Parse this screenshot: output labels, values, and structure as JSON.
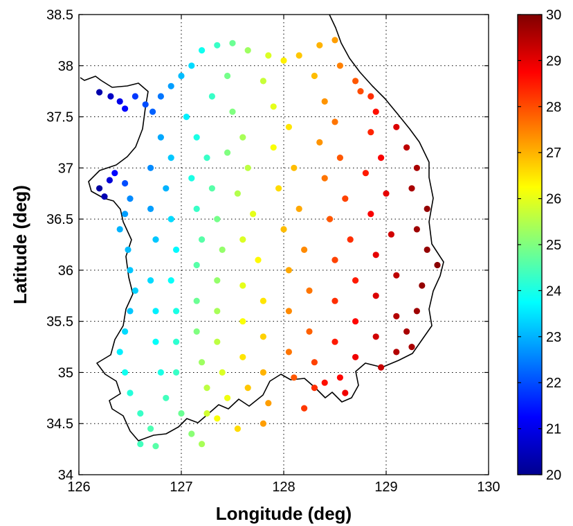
{
  "chart_data": {
    "type": "scatter",
    "title": "",
    "xlabel": "Longitude (deg)",
    "ylabel": "Latitude (deg)",
    "xlim": [
      126,
      130
    ],
    "ylim": [
      34,
      38.5
    ],
    "x_ticks": [
      "126",
      "127",
      "128",
      "129",
      "130"
    ],
    "y_ticks": [
      "34",
      "34.5",
      "35",
      "35.5",
      "36",
      "36.5",
      "37",
      "37.5",
      "38",
      "38.5"
    ],
    "grid": true,
    "colormap": "jet",
    "colorbar": {
      "range": [
        20,
        30
      ],
      "ticks": [
        "20",
        "21",
        "22",
        "23",
        "24",
        "25",
        "26",
        "27",
        "28",
        "29",
        "30"
      ],
      "placement": "right"
    },
    "coastline_color": "#000000",
    "points": [
      [
        126.2,
        37.74,
        20.3
      ],
      [
        126.31,
        37.7,
        20.6
      ],
      [
        126.4,
        37.65,
        21.0
      ],
      [
        126.45,
        37.58,
        21.3
      ],
      [
        126.55,
        37.7,
        21.8
      ],
      [
        126.65,
        37.62,
        22.0
      ],
      [
        126.72,
        37.55,
        22.2
      ],
      [
        126.8,
        37.7,
        22.4
      ],
      [
        126.9,
        37.8,
        22.8
      ],
      [
        127.0,
        37.9,
        23.1
      ],
      [
        127.1,
        38.0,
        23.4
      ],
      [
        127.2,
        38.15,
        23.9
      ],
      [
        127.35,
        38.2,
        24.3
      ],
      [
        127.5,
        38.22,
        24.8
      ],
      [
        127.65,
        38.15,
        25.3
      ],
      [
        127.85,
        38.1,
        25.9
      ],
      [
        128.0,
        38.05,
        26.4
      ],
      [
        128.15,
        38.1,
        26.8
      ],
      [
        128.35,
        38.2,
        27.0
      ],
      [
        128.5,
        38.25,
        27.2
      ],
      [
        128.55,
        38.0,
        27.5
      ],
      [
        128.7,
        37.85,
        27.9
      ],
      [
        128.85,
        37.7,
        28.3
      ],
      [
        128.9,
        37.55,
        28.6
      ],
      [
        126.2,
        36.8,
        20.2
      ],
      [
        126.25,
        36.72,
        20.4
      ],
      [
        126.3,
        36.88,
        20.8
      ],
      [
        126.35,
        36.95,
        21.3
      ],
      [
        126.45,
        36.85,
        22.0
      ],
      [
        126.5,
        36.7,
        22.6
      ],
      [
        126.45,
        36.55,
        22.8
      ],
      [
        126.4,
        36.4,
        23.0
      ],
      [
        126.48,
        36.2,
        23.1
      ],
      [
        126.5,
        36.0,
        23.2
      ],
      [
        126.55,
        35.8,
        23.3
      ],
      [
        126.5,
        35.6,
        23.2
      ],
      [
        126.45,
        35.4,
        23.4
      ],
      [
        126.4,
        35.2,
        23.6
      ],
      [
        126.45,
        35.0,
        23.9
      ],
      [
        126.5,
        34.8,
        24.1
      ],
      [
        126.6,
        34.6,
        24.3
      ],
      [
        126.7,
        34.45,
        24.5
      ],
      [
        126.6,
        34.3,
        24.4
      ],
      [
        126.75,
        34.28,
        24.6
      ],
      [
        126.8,
        37.3,
        22.9
      ],
      [
        126.9,
        37.1,
        23.2
      ],
      [
        126.7,
        37.0,
        22.6
      ],
      [
        126.85,
        36.8,
        23.0
      ],
      [
        126.7,
        36.6,
        22.8
      ],
      [
        126.75,
        36.3,
        23.2
      ],
      [
        126.9,
        36.5,
        23.4
      ],
      [
        126.95,
        36.2,
        23.7
      ],
      [
        126.7,
        35.9,
        23.4
      ],
      [
        126.9,
        35.9,
        23.8
      ],
      [
        126.75,
        35.6,
        23.6
      ],
      [
        126.95,
        35.6,
        24.0
      ],
      [
        126.75,
        35.3,
        23.8
      ],
      [
        126.95,
        35.3,
        24.2
      ],
      [
        126.8,
        35.0,
        24.0
      ],
      [
        126.95,
        35.0,
        24.3
      ],
      [
        126.85,
        34.75,
        24.4
      ],
      [
        127.0,
        34.6,
        24.8
      ],
      [
        127.1,
        34.4,
        25.1
      ],
      [
        127.2,
        34.3,
        25.4
      ],
      [
        127.05,
        37.5,
        23.6
      ],
      [
        127.15,
        37.3,
        24.0
      ],
      [
        127.25,
        37.1,
        24.3
      ],
      [
        127.1,
        36.9,
        24.0
      ],
      [
        127.3,
        36.8,
        24.6
      ],
      [
        127.15,
        36.6,
        24.3
      ],
      [
        127.35,
        36.5,
        24.9
      ],
      [
        127.2,
        36.3,
        24.6
      ],
      [
        127.4,
        36.2,
        25.2
      ],
      [
        127.15,
        36.05,
        24.6
      ],
      [
        127.35,
        35.9,
        25.2
      ],
      [
        127.15,
        35.7,
        24.8
      ],
      [
        127.35,
        35.6,
        25.4
      ],
      [
        127.15,
        35.4,
        25.0
      ],
      [
        127.35,
        35.3,
        25.6
      ],
      [
        127.2,
        35.1,
        25.3
      ],
      [
        127.4,
        35.0,
        25.9
      ],
      [
        127.25,
        34.85,
        25.6
      ],
      [
        127.45,
        34.75,
        26.1
      ],
      [
        127.35,
        34.55,
        26.2
      ],
      [
        127.55,
        34.45,
        26.6
      ],
      [
        127.25,
        34.6,
        25.8
      ],
      [
        127.3,
        37.7,
        24.3
      ],
      [
        127.45,
        37.9,
        24.9
      ],
      [
        127.5,
        37.55,
        25.0
      ],
      [
        127.6,
        37.3,
        25.4
      ],
      [
        127.45,
        37.15,
        25.0
      ],
      [
        127.65,
        37.0,
        25.6
      ],
      [
        127.55,
        36.75,
        25.5
      ],
      [
        127.7,
        36.55,
        26.0
      ],
      [
        127.6,
        36.3,
        25.9
      ],
      [
        127.75,
        36.1,
        26.3
      ],
      [
        127.6,
        35.85,
        26.0
      ],
      [
        127.8,
        35.7,
        26.5
      ],
      [
        127.6,
        35.5,
        26.2
      ],
      [
        127.8,
        35.35,
        26.7
      ],
      [
        127.6,
        35.15,
        26.5
      ],
      [
        127.8,
        35.0,
        27.0
      ],
      [
        127.65,
        34.85,
        26.8
      ],
      [
        127.85,
        34.7,
        27.2
      ],
      [
        127.8,
        34.5,
        27.2
      ],
      [
        127.8,
        37.85,
        25.7
      ],
      [
        127.9,
        37.6,
        26.0
      ],
      [
        128.05,
        37.4,
        26.5
      ],
      [
        127.9,
        37.2,
        26.2
      ],
      [
        128.1,
        37.0,
        26.9
      ],
      [
        127.95,
        36.8,
        26.6
      ],
      [
        128.15,
        36.6,
        27.1
      ],
      [
        128.0,
        36.4,
        26.9
      ],
      [
        128.2,
        36.2,
        27.4
      ],
      [
        128.05,
        36.0,
        27.1
      ],
      [
        128.25,
        35.8,
        27.6
      ],
      [
        128.05,
        35.6,
        27.4
      ],
      [
        128.25,
        35.4,
        27.8
      ],
      [
        128.05,
        35.2,
        27.6
      ],
      [
        128.3,
        35.1,
        28.1
      ],
      [
        128.1,
        34.95,
        27.9
      ],
      [
        128.3,
        34.85,
        28.3
      ],
      [
        128.2,
        34.65,
        28.2
      ],
      [
        128.3,
        37.9,
        26.9
      ],
      [
        128.4,
        37.65,
        27.3
      ],
      [
        128.5,
        37.45,
        27.6
      ],
      [
        128.35,
        37.25,
        27.3
      ],
      [
        128.55,
        37.1,
        27.9
      ],
      [
        128.4,
        36.9,
        27.6
      ],
      [
        128.6,
        36.7,
        28.1
      ],
      [
        128.45,
        36.5,
        27.9
      ],
      [
        128.65,
        36.3,
        28.3
      ],
      [
        128.5,
        36.1,
        28.1
      ],
      [
        128.7,
        35.9,
        28.5
      ],
      [
        128.5,
        35.7,
        28.3
      ],
      [
        128.7,
        35.5,
        28.7
      ],
      [
        128.5,
        35.3,
        28.5
      ],
      [
        128.7,
        35.15,
        28.9
      ],
      [
        128.55,
        34.95,
        28.7
      ],
      [
        128.4,
        34.9,
        28.6
      ],
      [
        128.6,
        34.8,
        28.9
      ],
      [
        128.75,
        37.75,
        28.0
      ],
      [
        128.85,
        37.35,
        28.4
      ],
      [
        128.95,
        37.1,
        28.8
      ],
      [
        128.8,
        36.95,
        28.5
      ],
      [
        129.0,
        36.75,
        29.0
      ],
      [
        128.85,
        36.55,
        28.8
      ],
      [
        129.05,
        36.35,
        29.2
      ],
      [
        128.9,
        36.15,
        29.0
      ],
      [
        129.1,
        35.95,
        29.4
      ],
      [
        128.9,
        35.75,
        29.1
      ],
      [
        129.1,
        35.55,
        29.5
      ],
      [
        128.9,
        35.35,
        29.2
      ],
      [
        129.1,
        35.2,
        29.5
      ],
      [
        128.95,
        35.05,
        29.3
      ],
      [
        129.1,
        37.4,
        29.1
      ],
      [
        129.2,
        37.2,
        29.4
      ],
      [
        129.3,
        37.0,
        29.6
      ],
      [
        129.25,
        36.8,
        29.6
      ],
      [
        129.4,
        36.6,
        29.8
      ],
      [
        129.3,
        36.4,
        29.7
      ],
      [
        129.4,
        36.2,
        29.8
      ],
      [
        129.5,
        36.05,
        29.9
      ],
      [
        129.35,
        35.85,
        29.8
      ],
      [
        129.3,
        35.6,
        29.7
      ],
      [
        129.2,
        35.4,
        29.6
      ],
      [
        129.25,
        35.25,
        29.6
      ]
    ]
  }
}
